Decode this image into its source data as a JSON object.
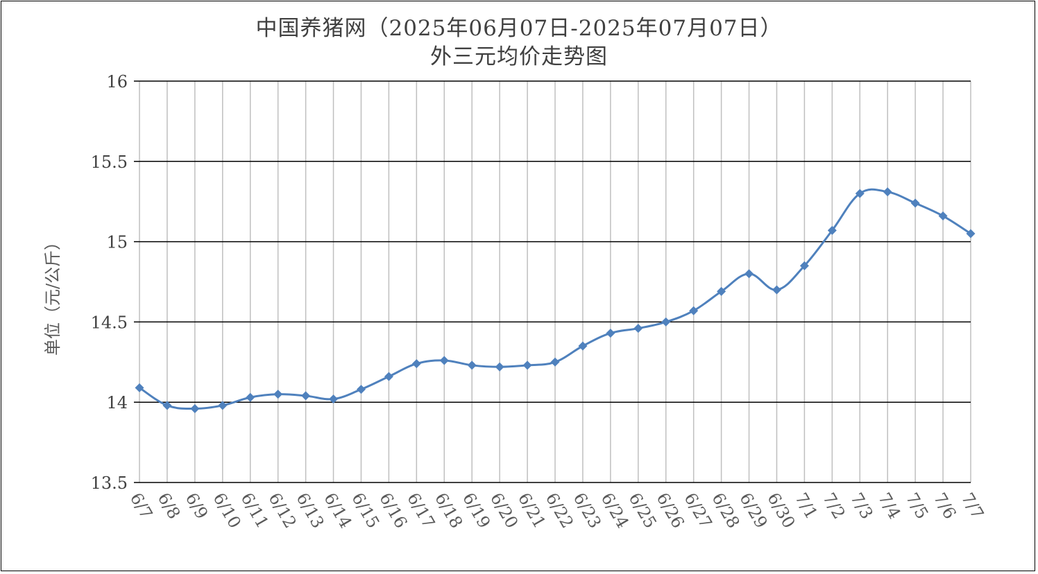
{
  "chart_data": {
    "type": "line",
    "title": "中国养猪网（2025年06月07日-2025年07月07日）",
    "subtitle": "外三元均价走势图",
    "xlabel": "",
    "ylabel": "单位（元/公斤）",
    "ylim": [
      13.5,
      16
    ],
    "yticks": [
      "13.5",
      "14",
      "14.5",
      "15",
      "15.5",
      "16"
    ],
    "grid": "both",
    "line_color": "#4F81BD",
    "categories": [
      "6/7",
      "6/8",
      "6/9",
      "6/10",
      "6/11",
      "6/12",
      "6/13",
      "6/14",
      "6/15",
      "6/16",
      "6/17",
      "6/18",
      "6/19",
      "6/20",
      "6/21",
      "6/22",
      "6/23",
      "6/24",
      "6/25",
      "6/26",
      "6/27",
      "6/28",
      "6/29",
      "6/30",
      "7/1",
      "7/2",
      "7/3",
      "7/4",
      "7/5",
      "7/6",
      "7/7"
    ],
    "values": [
      14.09,
      13.98,
      13.96,
      13.98,
      14.03,
      14.05,
      14.04,
      14.02,
      14.08,
      14.16,
      14.24,
      14.26,
      14.23,
      14.22,
      14.23,
      14.25,
      14.35,
      14.43,
      14.46,
      14.5,
      14.57,
      14.69,
      14.8,
      14.7,
      14.85,
      15.07,
      15.3,
      15.31,
      15.24,
      15.16,
      15.05
    ]
  }
}
